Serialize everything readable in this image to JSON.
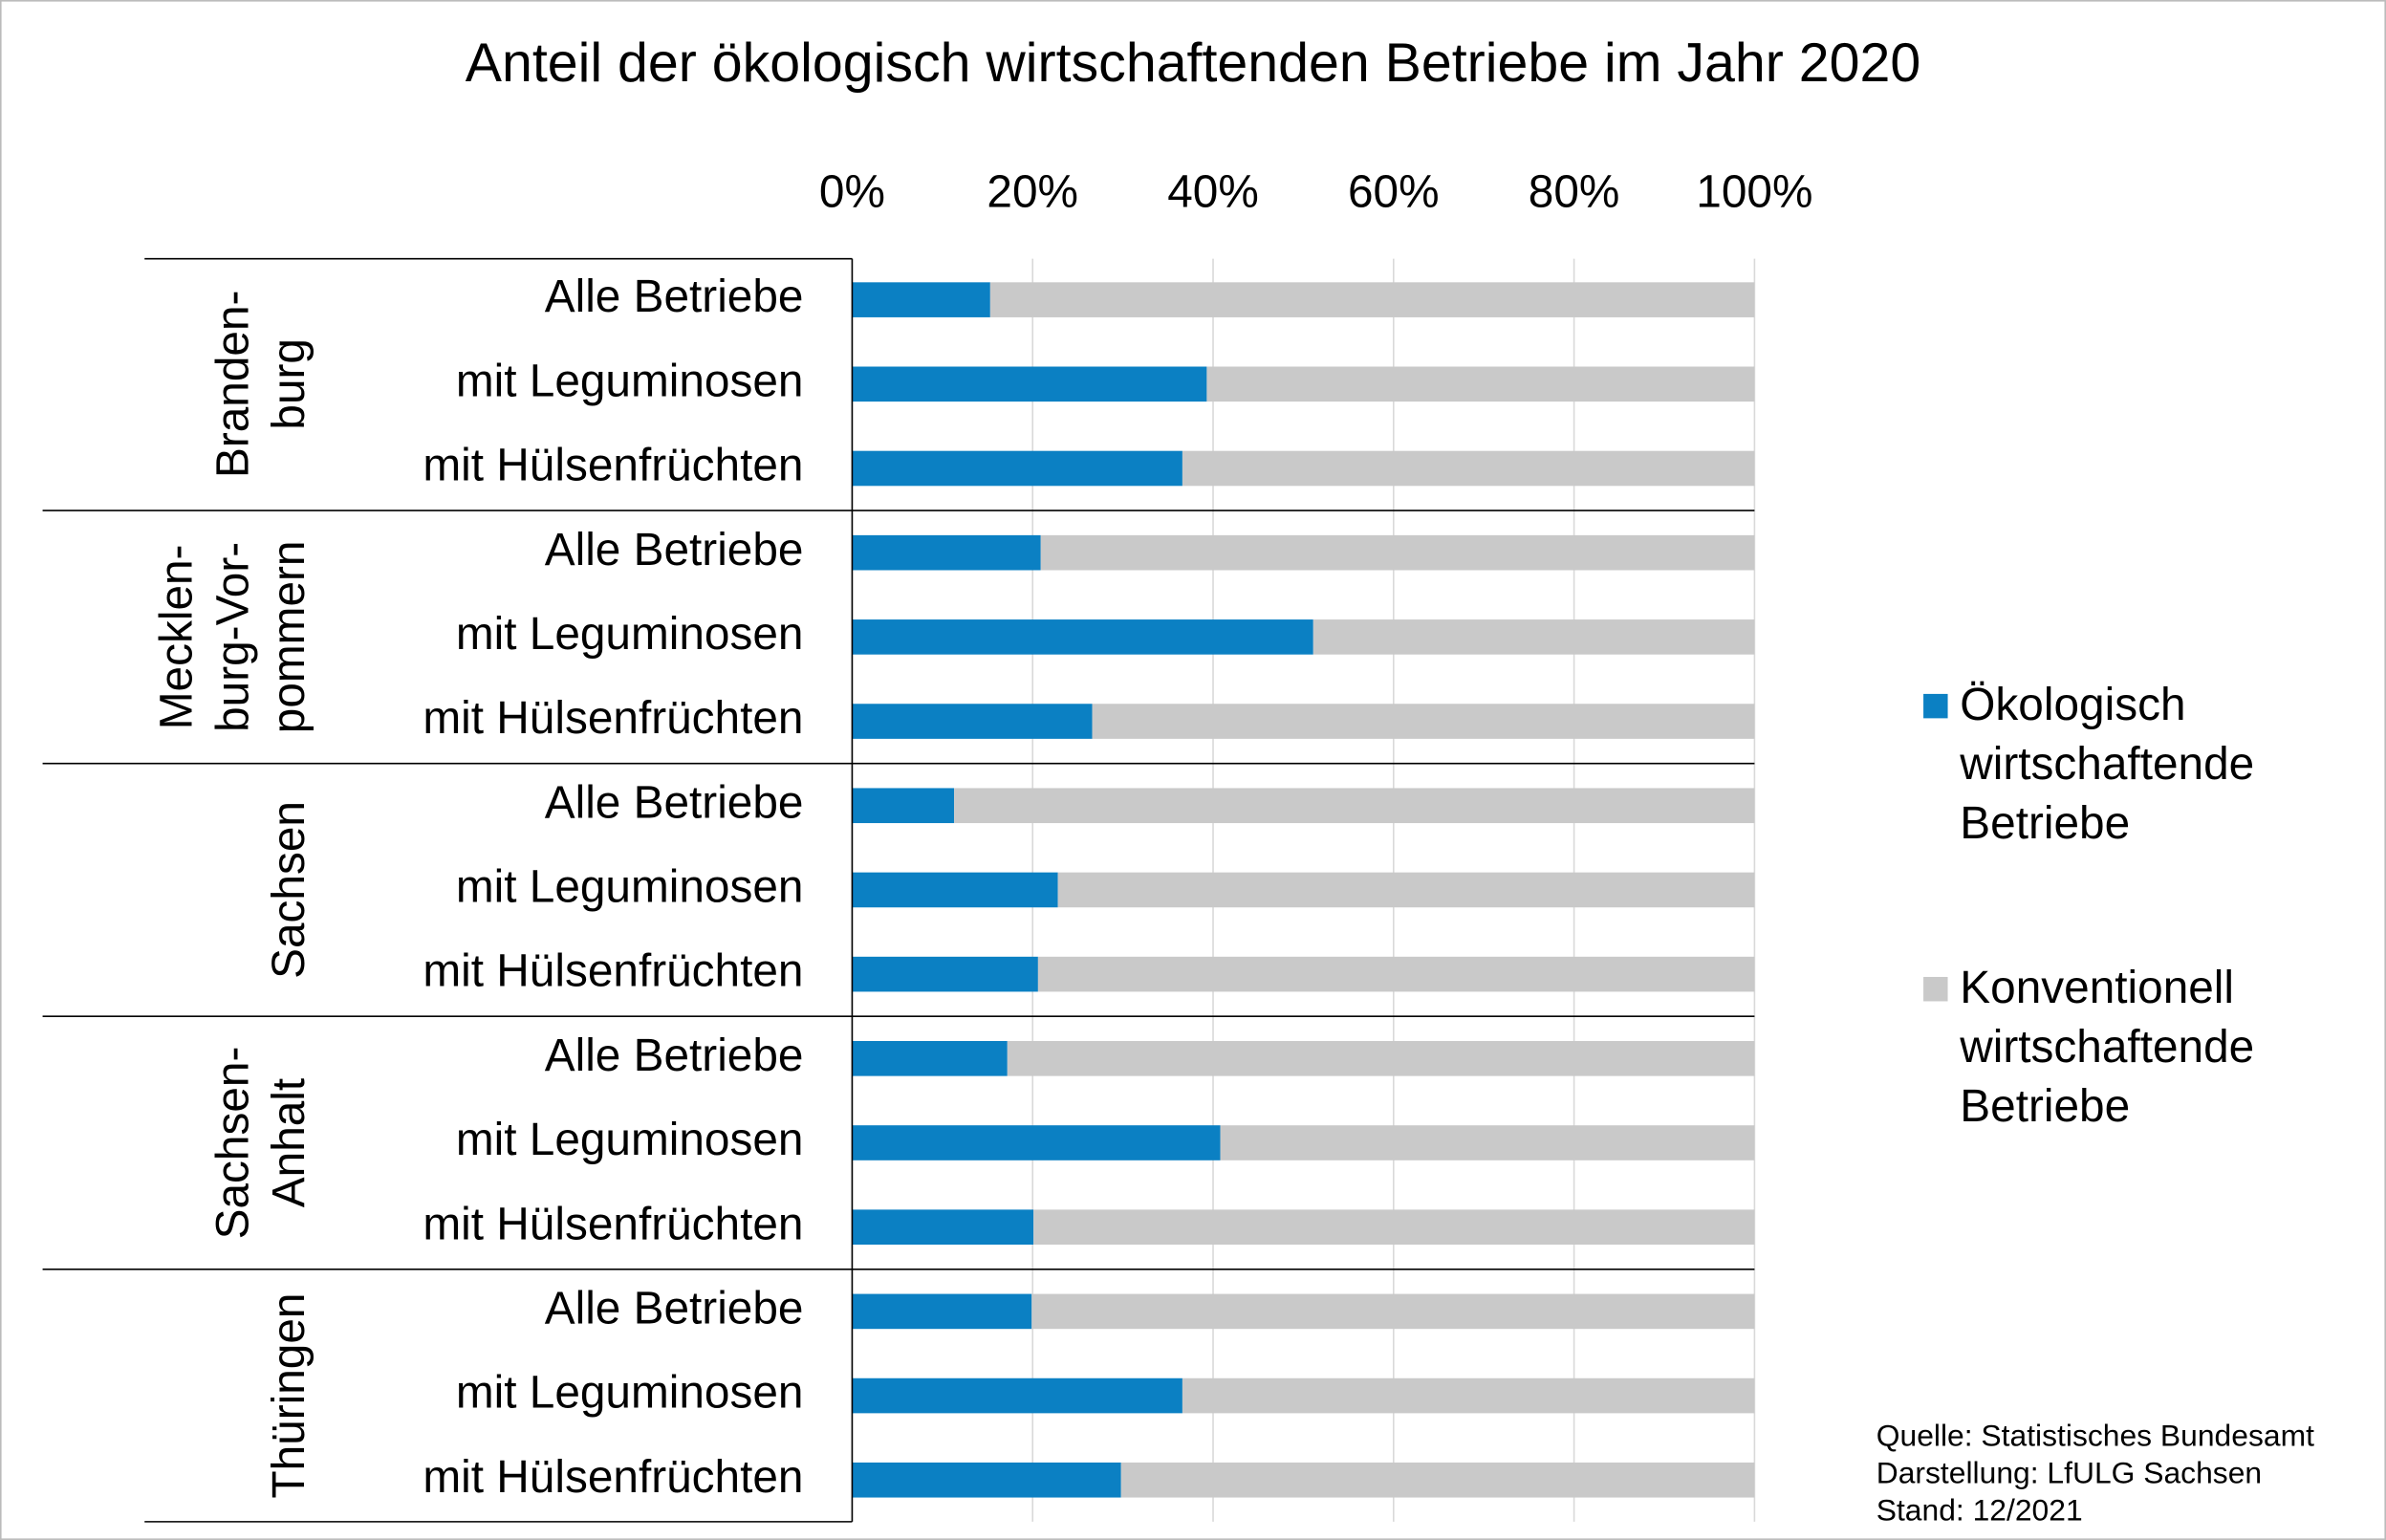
{
  "chart_data": {
    "type": "stacked-bar-horizontal",
    "title": "Anteil der ökologisch wirtschaftenden Betriebe im Jahr 2020",
    "categories": [
      "Alle Betriebe",
      "mit Leguminosen",
      "mit Hülsenfrüchten",
      "Alle Betriebe",
      "mit Leguminosen",
      "mit Hülsenfrüchten",
      "Alle Betriebe",
      "mit Leguminosen",
      "mit Hülsenfrüchten",
      "Alle Betriebe",
      "mit Leguminosen",
      "mit Hülsenfrüchten",
      "Alle Betriebe",
      "mit Leguminosen",
      "mit Hülsenfrüchten"
    ],
    "groups": [
      {
        "lines": [
          "Branden-",
          "burg"
        ]
      },
      {
        "lines": [
          "Mecklen-",
          "burg-Vor-",
          "pommern"
        ]
      },
      {
        "lines": [
          "Sachsen"
        ]
      },
      {
        "lines": [
          "Sachsen-",
          "Anhalt"
        ]
      },
      {
        "lines": [
          "Thüringen"
        ]
      }
    ],
    "series": [
      {
        "name": "Ökologisch wirtschaftende Betriebe",
        "color": "#0b80c3",
        "values": [
          15.3,
          39.3,
          36.6,
          20.9,
          51.1,
          26.6,
          11.3,
          22.8,
          20.6,
          17.2,
          40.8,
          20.1,
          19.9,
          36.6,
          29.8
        ]
      },
      {
        "name": "Konventionell wirtschaftende Betriebe",
        "color": "#c9c9c9",
        "values": [
          84.7,
          60.7,
          63.4,
          79.1,
          48.9,
          73.4,
          88.7,
          77.2,
          79.4,
          82.8,
          59.2,
          79.9,
          80.1,
          63.4,
          70.2
        ]
      }
    ],
    "xlim": [
      0,
      100
    ],
    "xticks": [
      {
        "value": 0,
        "label": "0%"
      },
      {
        "value": 20,
        "label": "20%"
      },
      {
        "value": 40,
        "label": "40%"
      },
      {
        "value": 60,
        "label": "60%"
      },
      {
        "value": 80,
        "label": "80%"
      },
      {
        "value": 100,
        "label": "100%"
      }
    ],
    "grid": true,
    "legend": "right",
    "source": [
      "Quelle: Statistisches Bundesamt",
      "Darstellung: LfULG Sachsen",
      "Stand: 12/2021"
    ]
  }
}
